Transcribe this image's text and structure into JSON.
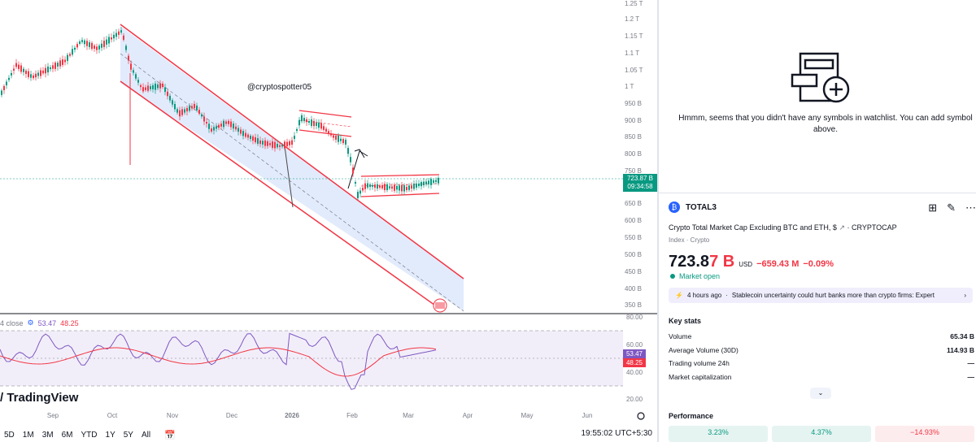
{
  "chart": {
    "price_axis": [
      "1.25 T",
      "1.2 T",
      "1.15 T",
      "1.1 T",
      "1.05 T",
      "1 T",
      "950 B",
      "900 B",
      "850 B",
      "800 B",
      "750 B",
      "650 B",
      "600 B",
      "550 B",
      "500 B",
      "450 B",
      "400 B",
      "350 B"
    ],
    "time_axis": [
      "Sep",
      "Oct",
      "Nov",
      "Dec",
      "2026",
      "Feb",
      "Mar",
      "Apr",
      "May",
      "Jun"
    ],
    "watermark": "@cryptospotter05",
    "current_price": "723.87 B",
    "countdown": "09:34:58",
    "rsi_axis": [
      "80.00",
      "60.00",
      "40.00",
      "20.00"
    ],
    "rsi_legend_label": "4 close",
    "rsi_value": "53.47",
    "rsi_ma_value": "48.25",
    "logo_text": "TradingView",
    "ranges": [
      "5D",
      "1M",
      "3M",
      "6M",
      "YTD",
      "1Y",
      "5Y",
      "All"
    ],
    "clock": "19:55:02 UTC+5:30",
    "colors": {
      "up": "#089981",
      "down": "#f23645",
      "channel_fill": "#dbe6fb",
      "rsi_line": "#7e57c2"
    }
  },
  "watchlist": {
    "empty_message": "Hmmm, seems that you didn't have any symbols in watchlist. You can add symbol above."
  },
  "symbol": {
    "logo_icon": "crypto-logo-icon",
    "ticker": "TOTAL3",
    "full_name": "Crypto Total Market Cap Excluding BTC and ETH, $",
    "exchange": "· CRYPTOCAP",
    "type": "Index · Crypto",
    "price_main": "723.8",
    "price_tail": "7 B",
    "currency": "USD",
    "change": "−659.43 M",
    "change_pct": "−0.09%",
    "market_status": "Market open",
    "news_time": "4 hours ago",
    "news_text": "Stablecoin uncertainty could hurt banks more than crypto firms: Expert",
    "key_stats_title": "Key stats",
    "stats": [
      {
        "label": "Volume",
        "value": "65.34 B"
      },
      {
        "label": "Average Volume (30D)",
        "value": "114.93 B"
      },
      {
        "label": "Trading volume 24h",
        "value": "—"
      },
      {
        "label": "Market capitalization",
        "value": "—"
      }
    ],
    "performance_title": "Performance",
    "performance": [
      "3.23%",
      "4.37%",
      "−14.93%"
    ]
  }
}
